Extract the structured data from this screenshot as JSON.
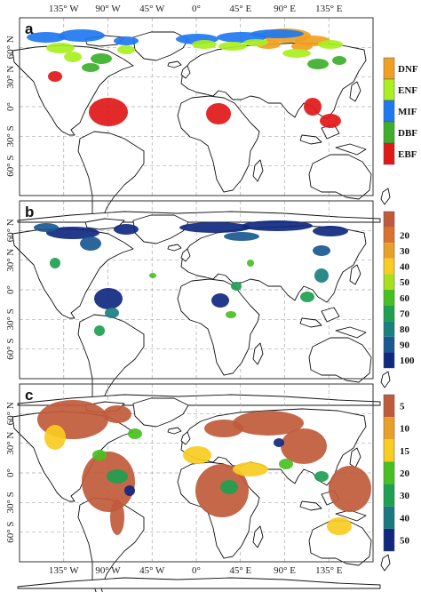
{
  "figure": {
    "lon_ticks": [
      "135° W",
      "90° W",
      "45° W",
      "0°",
      "45° E",
      "90° E",
      "135° E"
    ],
    "lat_ticks": [
      "60° N",
      "30° N",
      "0°",
      "30° S",
      "60° S"
    ]
  },
  "panels": [
    {
      "letter": "a",
      "legend_type": "categorical",
      "legend": [
        {
          "label": "DNF",
          "color": "#f0a020"
        },
        {
          "label": "ENF",
          "color": "#a8f020"
        },
        {
          "label": "MIF",
          "color": "#1e78f0"
        },
        {
          "label": "DBF",
          "color": "#3cb02a"
        },
        {
          "label": "EBF",
          "color": "#e01818"
        }
      ]
    },
    {
      "letter": "b",
      "legend_type": "continuous",
      "legend": [
        {
          "label": "",
          "color": "#c05a3a"
        },
        {
          "label": "20",
          "color": "#d8722e"
        },
        {
          "label": "30",
          "color": "#e8a028"
        },
        {
          "label": "40",
          "color": "#f8cc20"
        },
        {
          "label": "50",
          "color": "#a8e020"
        },
        {
          "label": "60",
          "color": "#48c020"
        },
        {
          "label": "70",
          "color": "#1ea050"
        },
        {
          "label": "80",
          "color": "#1a8080"
        },
        {
          "label": "90",
          "color": "#1a5890"
        },
        {
          "label": "100",
          "color": "#102880"
        }
      ]
    },
    {
      "letter": "c",
      "legend_type": "continuous",
      "legend": [
        {
          "label": "5",
          "color": "#c05a3a"
        },
        {
          "label": "10",
          "color": "#e8a028"
        },
        {
          "label": "15",
          "color": "#f8cc20"
        },
        {
          "label": "20",
          "color": "#48c020"
        },
        {
          "label": "30",
          "color": "#1ea050"
        },
        {
          "label": "40",
          "color": "#1a7880"
        },
        {
          "label": "50",
          "color": "#102880"
        }
      ]
    }
  ]
}
